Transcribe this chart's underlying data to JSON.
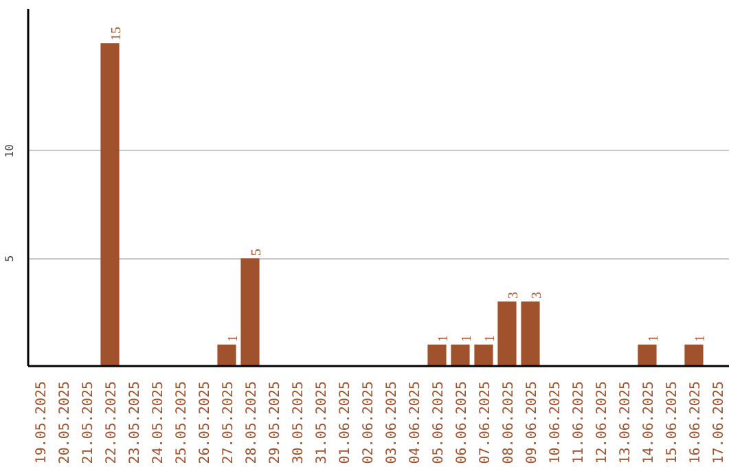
{
  "chart_data": {
    "type": "bar",
    "categories": [
      "19.05.2025",
      "20.05.2025",
      "21.05.2025",
      "22.05.2025",
      "23.05.2025",
      "24.05.2025",
      "25.05.2025",
      "26.05.2025",
      "27.05.2025",
      "28.05.2025",
      "29.05.2025",
      "30.05.2025",
      "31.05.2025",
      "01.06.2025",
      "02.06.2025",
      "03.06.2025",
      "04.06.2025",
      "05.06.2025",
      "06.06.2025",
      "07.06.2025",
      "08.06.2025",
      "09.06.2025",
      "10.06.2025",
      "11.06.2025",
      "12.06.2025",
      "13.06.2025",
      "14.06.2025",
      "15.06.2025",
      "16.06.2025",
      "17.06.2025"
    ],
    "values": [
      0,
      0,
      0,
      15,
      0,
      0,
      0,
      0,
      1,
      5,
      0,
      0,
      0,
      0,
      0,
      0,
      0,
      1,
      1,
      1,
      3,
      3,
      0,
      0,
      0,
      0,
      1,
      0,
      1,
      0
    ],
    "value_labels": [
      null,
      null,
      null,
      "15",
      null,
      null,
      null,
      null,
      "1",
      "5",
      null,
      null,
      null,
      null,
      null,
      null,
      null,
      "1",
      "1",
      "1",
      "3",
      "3",
      null,
      null,
      null,
      null,
      "1",
      null,
      "1",
      null
    ],
    "color": "#a0522d",
    "ylim": [
      0,
      16.6
    ],
    "yticks": [
      5,
      10
    ],
    "grid": "y"
  }
}
